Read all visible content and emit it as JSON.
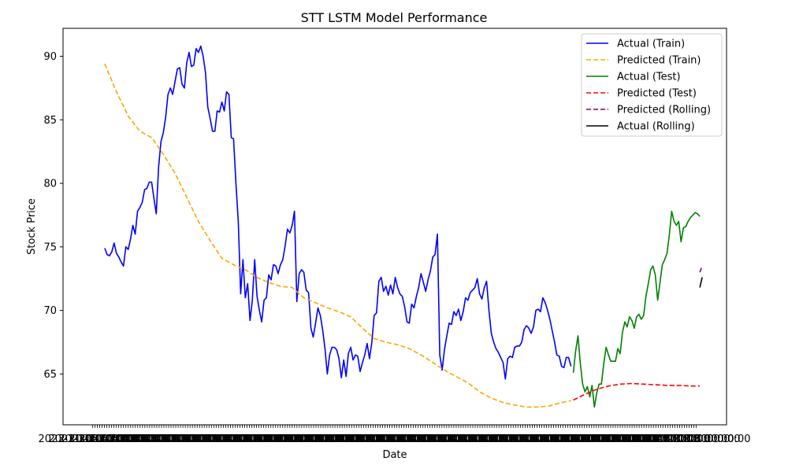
{
  "chart_data": {
    "type": "line",
    "title": "STT LSTM Model Performance",
    "xlabel": "Date",
    "ylabel": "Stock Price",
    "ylim": [
      61,
      92.2
    ],
    "yticks": [
      65,
      70,
      75,
      80,
      85,
      90
    ],
    "grid": false,
    "legend_position": "top-right",
    "xtick_label_text": "2023-11-08 00:00:00",
    "series": [
      {
        "name": "Actual (Train)",
        "color": "#0000ff",
        "dash": "solid",
        "x": [
          0,
          1,
          2,
          3,
          4,
          5,
          6,
          7,
          8,
          9,
          10,
          11,
          12,
          13,
          14,
          15,
          16,
          17,
          18,
          19,
          20,
          21,
          22,
          23,
          24,
          25,
          26,
          27,
          28,
          29,
          30,
          31,
          32,
          33,
          34,
          35,
          36,
          37,
          38,
          39,
          40,
          41,
          42,
          43,
          44,
          45,
          46,
          47,
          48,
          49,
          50,
          51,
          52,
          53,
          54,
          55,
          56,
          57,
          58,
          59,
          60,
          61,
          62,
          63,
          64,
          65,
          66,
          67,
          68,
          69,
          70,
          71,
          72,
          73,
          74,
          75,
          76,
          77,
          78,
          79,
          80,
          81,
          82,
          83,
          84,
          85,
          86,
          87,
          88,
          89,
          90,
          91,
          92,
          93,
          94,
          95,
          96,
          97,
          98,
          99,
          100,
          101,
          102,
          103,
          104,
          105,
          106,
          107,
          108,
          109,
          110,
          111,
          112,
          113,
          114,
          115,
          116,
          117,
          118,
          119,
          120,
          121,
          122,
          123,
          124,
          125,
          126,
          127,
          128,
          129,
          130,
          131,
          132,
          133,
          134,
          135,
          136,
          137,
          138,
          139,
          140,
          141,
          142,
          143,
          144,
          145,
          146,
          147,
          148,
          149,
          150,
          151,
          152,
          153,
          154,
          155,
          156,
          157,
          158,
          159,
          160,
          161,
          162,
          163,
          164,
          165,
          166,
          167,
          168,
          169,
          170,
          171,
          172,
          173,
          174,
          175,
          176,
          177,
          178,
          179,
          180,
          181,
          182,
          183,
          184,
          185,
          186,
          187,
          188,
          189,
          190,
          191,
          192,
          193,
          194,
          195,
          196,
          197,
          198,
          199
        ],
        "y": [
          74.9,
          74.4,
          74.3,
          74.6,
          75.3,
          74.5,
          74.2,
          73.8,
          73.5,
          75.0,
          74.8,
          75.6,
          76.7,
          76.0,
          77.8,
          78.1,
          78.5,
          79.5,
          79.6,
          80.1,
          80.1,
          78.8,
          77.6,
          81.3,
          83.3,
          84.0,
          85.2,
          87.0,
          87.5,
          87.0,
          88.0,
          89.0,
          89.1,
          87.8,
          87.5,
          89.5,
          90.3,
          89.2,
          89.3,
          90.6,
          90.3,
          90.8,
          90.0,
          88.7,
          86.0,
          85.1,
          84.1,
          84.1,
          85.7,
          85.6,
          86.4,
          85.7,
          87.2,
          87.0,
          83.6,
          83.5,
          80.0,
          77.0,
          71.3,
          74.0,
          71.0,
          72.1,
          69.2,
          70.8,
          74.0,
          71.1,
          70.0,
          69.1,
          70.8,
          71.0,
          72.8,
          72.4,
          73.6,
          73.5,
          72.9,
          73.6,
          74.0,
          75.1,
          76.4,
          76.1,
          76.7,
          77.8,
          70.7,
          72.9,
          73.2,
          73.0,
          71.6,
          71.4,
          68.6,
          67.9,
          69.0,
          70.2,
          69.6,
          68.5,
          67.0,
          65.0,
          66.5,
          67.1,
          67.1,
          66.9,
          66.2,
          64.7,
          66.1,
          64.8,
          66.6,
          67.1,
          66.1,
          66.5,
          66.4,
          65.2,
          65.9,
          66.5,
          67.4,
          66.2,
          67.5,
          69.6,
          69.8,
          72.3,
          72.6,
          71.5,
          71.9,
          71.2,
          72.0,
          71.3,
          72.6,
          71.8,
          71.3,
          71.1,
          70.3,
          69.1,
          69.0,
          70.5,
          70.2,
          71.1,
          71.8,
          72.9,
          72.2,
          71.5,
          72.4,
          73.1,
          74.2,
          74.4,
          76.0,
          66.5,
          65.3,
          66.9,
          68.0,
          69.0,
          68.9,
          69.9,
          69.6,
          70.1,
          69.2,
          69.9,
          71.0,
          70.8,
          71.4,
          71.6,
          71.8,
          72.5,
          71.3,
          70.9,
          71.8,
          72.3,
          70.0,
          68.2,
          67.5,
          67.0,
          66.7,
          66.3,
          65.9,
          64.6,
          66.2,
          66.4,
          66.3,
          67.1,
          67.2,
          67.2,
          67.5,
          68.5,
          68.8,
          68.6,
          68.2,
          68.7,
          70.0,
          70.1,
          69.9,
          71.0,
          70.6,
          70.0,
          69.3,
          68.4,
          67.5,
          66.5,
          66.4,
          65.6,
          65.5,
          66.3,
          66.3,
          65.6
        ]
      },
      {
        "name": "Predicted (Train)",
        "color": "#ffa500",
        "dash": "dashed",
        "x": [
          0,
          5,
          10,
          15,
          20,
          25,
          30,
          35,
          40,
          45,
          50,
          55,
          60,
          65,
          70,
          75,
          80,
          85,
          90,
          95,
          100,
          105,
          110,
          115,
          120,
          125,
          130,
          135,
          140,
          145,
          150,
          155,
          160,
          165,
          170,
          175,
          180,
          185,
          190,
          195,
          199
        ],
        "y": [
          89.4,
          87.2,
          85.3,
          84.1,
          83.6,
          82.3,
          80.8,
          78.9,
          77.0,
          75.5,
          74.1,
          73.6,
          73.2,
          72.6,
          72.2,
          71.9,
          71.8,
          71.0,
          70.6,
          70.2,
          69.9,
          69.5,
          68.6,
          67.8,
          67.5,
          67.3,
          67.0,
          66.5,
          65.9,
          65.3,
          64.8,
          64.3,
          63.6,
          63.1,
          62.75,
          62.55,
          62.4,
          62.4,
          62.5,
          62.75,
          62.9
        ]
      },
      {
        "name": "Actual (Test)",
        "color": "#008000",
        "dash": "solid",
        "x": [
          200,
          201,
          202,
          203,
          204,
          205,
          206,
          207,
          208,
          209,
          210,
          211,
          212,
          213,
          214,
          215,
          216,
          217,
          218,
          219,
          220,
          221,
          222,
          223,
          224,
          225,
          226,
          227,
          228,
          229,
          230,
          231,
          232,
          233,
          234,
          235,
          236,
          237,
          238,
          239,
          240,
          241,
          242,
          243,
          244,
          245,
          246,
          247,
          248,
          249,
          250,
          251,
          252,
          253,
          254
        ],
        "y": [
          65.1,
          66.8,
          68.0,
          65.8,
          64.2,
          63.6,
          64.0,
          63.2,
          64.1,
          62.4,
          63.5,
          64.2,
          64.2,
          65.8,
          67.1,
          66.5,
          66.0,
          66.0,
          66.0,
          67.0,
          66.6,
          68.3,
          69.1,
          68.7,
          69.5,
          69.2,
          68.6,
          69.5,
          69.7,
          69.3,
          69.6,
          71.1,
          72.1,
          73.2,
          73.5,
          72.8,
          70.8,
          72.2,
          73.6,
          74.0,
          74.5,
          76.0,
          77.8,
          77.0,
          76.7,
          77.0,
          75.4,
          76.5,
          76.6,
          77.0,
          77.3,
          77.5,
          77.7,
          77.6,
          77.4
        ]
      },
      {
        "name": "Predicted (Test)",
        "color": "#ff0000",
        "dash": "dashed",
        "x": [
          200,
          205,
          210,
          215,
          220,
          225,
          230,
          235,
          240,
          245,
          250,
          254
        ],
        "y": [
          62.95,
          63.4,
          63.8,
          64.05,
          64.2,
          64.25,
          64.2,
          64.15,
          64.1,
          64.1,
          64.05,
          64.05
        ]
      },
      {
        "name": "Predicted (Rolling)",
        "color": "#800080",
        "dash": "dashed",
        "x": [
          254,
          255
        ],
        "y": [
          73.0,
          73.5
        ]
      },
      {
        "name": "Actual (Rolling)",
        "color": "#000000",
        "dash": "solid",
        "x": [
          254,
          255
        ],
        "y": [
          71.8,
          72.6
        ]
      }
    ]
  }
}
